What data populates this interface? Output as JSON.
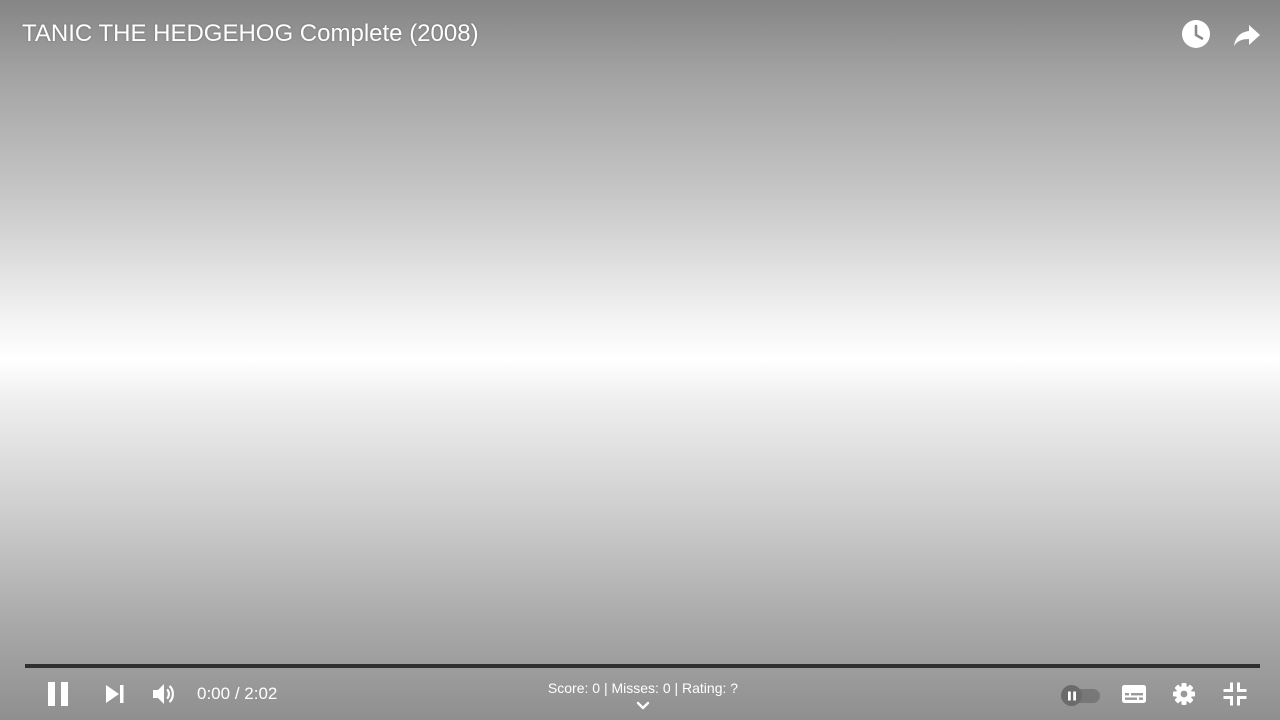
{
  "video": {
    "title": "TANIC THE HEDGEHOG Complete (2008)",
    "progress": 0.0
  },
  "top_controls": {
    "watch_later_icon": "clock-icon",
    "share_icon": "share-arrow-icon"
  },
  "controls": {
    "play_pause_icon": "pause-icon",
    "next_icon": "skip-next-icon",
    "volume_icon": "volume-icon",
    "current_time": "0:00",
    "time_separator": "/",
    "duration": "2:02",
    "score_text": "Score: 0 | Misses: 0 | Rating: ?",
    "expand_icon": "chevron-down-icon",
    "autoplay_icon": "autoplay-toggle-icon",
    "subtitles_icon": "subtitles-icon",
    "settings_icon": "gear-icon",
    "fullscreen_exit_icon": "exit-fullscreen-icon"
  },
  "colors": {
    "progress_track": "#2f2f2f",
    "progress_played": "#ff0000",
    "text": "#ffffff"
  }
}
